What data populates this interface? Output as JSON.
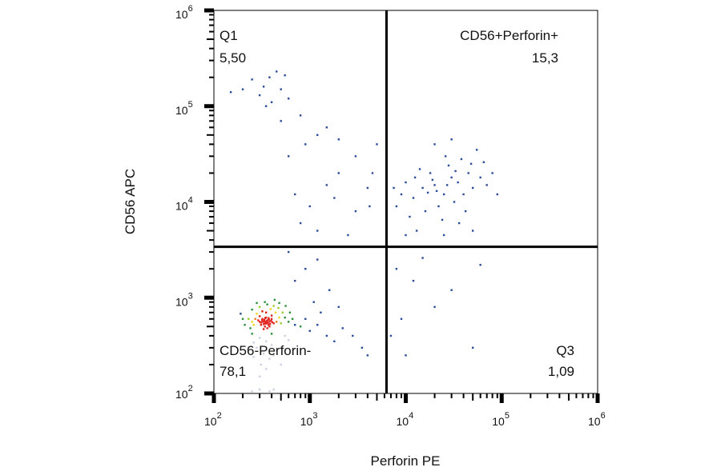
{
  "chart_data": {
    "type": "scatter",
    "xlabel": "Perforin PE",
    "ylabel": "CD56 APC",
    "x_scale": "log",
    "y_scale": "log",
    "xlim": [
      100,
      1000000
    ],
    "ylim": [
      100,
      1000000
    ],
    "x_ticks": [
      {
        "base": "10",
        "exp": "2"
      },
      {
        "base": "10",
        "exp": "3"
      },
      {
        "base": "10",
        "exp": "4"
      },
      {
        "base": "10",
        "exp": "5"
      },
      {
        "base": "10",
        "exp": "6"
      }
    ],
    "y_ticks": [
      {
        "base": "10",
        "exp": "2"
      },
      {
        "base": "10",
        "exp": "3"
      },
      {
        "base": "10",
        "exp": "4"
      },
      {
        "base": "10",
        "exp": "5"
      },
      {
        "base": "10",
        "exp": "6"
      }
    ],
    "gates": {
      "x": 6300,
      "y": 3400
    },
    "quadrants": [
      {
        "name": "Q1",
        "value": "5,50",
        "position": "top-left"
      },
      {
        "name": "CD56+Perforin+",
        "value": "15,3",
        "position": "top-right"
      },
      {
        "name": "CD56-Perforin-",
        "value": "78,1",
        "position": "bottom-left"
      },
      {
        "name": "Q3",
        "value": "1,09",
        "position": "bottom-right"
      }
    ],
    "density_colors": [
      "#2a4a9a",
      "#2d8f3c",
      "#9ccc2a",
      "#f2d21a",
      "#f07a14",
      "#e0201a"
    ],
    "low_color": "#c8cfe0",
    "points": [
      [
        300,
        560
      ],
      [
        320,
        600
      ],
      [
        350,
        540
      ],
      [
        370,
        520
      ],
      [
        340,
        500
      ],
      [
        360,
        580
      ],
      [
        330,
        530
      ],
      [
        380,
        560
      ],
      [
        400,
        600
      ],
      [
        310,
        520
      ],
      [
        290,
        580
      ],
      [
        350,
        620
      ],
      [
        420,
        540
      ],
      [
        380,
        500
      ],
      [
        360,
        480
      ],
      [
        330,
        470
      ],
      [
        400,
        650
      ],
      [
        450,
        560
      ],
      [
        300,
        640
      ],
      [
        270,
        600
      ],
      [
        250,
        560
      ],
      [
        440,
        700
      ],
      [
        480,
        620
      ],
      [
        500,
        540
      ],
      [
        350,
        700
      ],
      [
        320,
        720
      ],
      [
        280,
        680
      ],
      [
        260,
        520
      ],
      [
        230,
        600
      ],
      [
        390,
        760
      ],
      [
        420,
        820
      ],
      [
        360,
        850
      ],
      [
        300,
        800
      ],
      [
        470,
        780
      ],
      [
        520,
        700
      ],
      [
        550,
        620
      ],
      [
        600,
        560
      ],
      [
        240,
        480
      ],
      [
        210,
        520
      ],
      [
        200,
        600
      ],
      [
        560,
        820
      ],
      [
        620,
        700
      ],
      [
        660,
        600
      ],
      [
        340,
        900
      ],
      [
        430,
        950
      ],
      [
        480,
        880
      ],
      [
        280,
        880
      ],
      [
        250,
        750
      ],
      [
        190,
        680
      ],
      [
        700,
        520
      ],
      [
        340,
        560
      ],
      [
        360,
        550
      ],
      [
        355,
        570
      ],
      [
        345,
        535
      ],
      [
        365,
        545
      ],
      [
        375,
        590
      ],
      [
        335,
        585
      ],
      [
        325,
        560
      ],
      [
        385,
        530
      ],
      [
        395,
        575
      ],
      [
        310,
        550
      ],
      [
        405,
        555
      ],
      [
        372,
        612
      ],
      [
        342,
        612
      ],
      [
        318,
        580
      ],
      [
        300,
        380
      ],
      [
        350,
        350
      ],
      [
        280,
        300
      ],
      [
        400,
        320
      ],
      [
        330,
        260
      ],
      [
        260,
        340
      ],
      [
        450,
        280
      ],
      [
        380,
        230
      ],
      [
        310,
        200
      ],
      [
        500,
        300
      ],
      [
        420,
        250
      ],
      [
        260,
        240
      ],
      [
        350,
        180
      ],
      [
        300,
        150
      ],
      [
        230,
        300
      ],
      [
        500,
        200
      ],
      [
        400,
        420
      ],
      [
        250,
        420
      ],
      [
        550,
        400
      ],
      [
        600,
        360
      ],
      [
        300,
        110
      ],
      [
        380,
        105
      ],
      [
        250,
        105
      ],
      [
        420,
        110
      ],
      [
        800,
        500
      ],
      [
        1000,
        450
      ],
      [
        1200,
        520
      ],
      [
        1500,
        400
      ],
      [
        900,
        600
      ],
      [
        1800,
        350
      ],
      [
        1300,
        700
      ],
      [
        2200,
        480
      ],
      [
        2800,
        400
      ],
      [
        3500,
        300
      ],
      [
        1100,
        900
      ],
      [
        1600,
        1200
      ],
      [
        2000,
        800
      ],
      [
        4000,
        250
      ],
      [
        700,
        1500
      ],
      [
        900,
        2000
      ],
      [
        1200,
        2500
      ],
      [
        600,
        3000
      ],
      [
        20000,
        15000
      ],
      [
        25000,
        12000
      ],
      [
        30000,
        18000
      ],
      [
        15000,
        14000
      ],
      [
        18000,
        20000
      ],
      [
        35000,
        16000
      ],
      [
        40000,
        12000
      ],
      [
        22000,
        9000
      ],
      [
        12000,
        11000
      ],
      [
        28000,
        24000
      ],
      [
        45000,
        20000
      ],
      [
        50000,
        14000
      ],
      [
        16000,
        8000
      ],
      [
        10000,
        16000
      ],
      [
        32000,
        10000
      ],
      [
        60000,
        18000
      ],
      [
        26000,
        30000
      ],
      [
        38000,
        28000
      ],
      [
        14000,
        22000
      ],
      [
        9000,
        12000
      ],
      [
        20000,
        40000
      ],
      [
        30000,
        45000
      ],
      [
        55000,
        35000
      ],
      [
        70000,
        15000
      ],
      [
        80000,
        20000
      ],
      [
        8000,
        9000
      ],
      [
        7500,
        14000
      ],
      [
        11000,
        7000
      ],
      [
        42000,
        8000
      ],
      [
        24000,
        6500
      ],
      [
        19000,
        17000
      ],
      [
        21000,
        13000
      ],
      [
        27000,
        15000
      ],
      [
        33000,
        21000
      ],
      [
        17000,
        12500
      ],
      [
        48000,
        25000
      ],
      [
        12500,
        18000
      ],
      [
        65000,
        26000
      ],
      [
        90000,
        12000
      ],
      [
        36000,
        6000
      ],
      [
        13000,
        5000
      ],
      [
        50000,
        5000
      ],
      [
        25000,
        4500
      ],
      [
        10000,
        4500
      ],
      [
        700,
        12000
      ],
      [
        1000,
        9000
      ],
      [
        1500,
        15000
      ],
      [
        2000,
        20000
      ],
      [
        3000,
        8000
      ],
      [
        4000,
        14000
      ],
      [
        800,
        6000
      ],
      [
        1200,
        5000
      ],
      [
        2500,
        4500
      ],
      [
        1800,
        11000
      ],
      [
        600,
        30000
      ],
      [
        900,
        40000
      ],
      [
        1500,
        60000
      ],
      [
        2000,
        45000
      ],
      [
        3000,
        30000
      ],
      [
        4500,
        20000
      ],
      [
        500,
        70000
      ],
      [
        400,
        110000
      ],
      [
        300,
        130000
      ],
      [
        330,
        160000
      ],
      [
        250,
        190000
      ],
      [
        380,
        200000
      ],
      [
        450,
        230000
      ],
      [
        550,
        210000
      ],
      [
        500,
        150000
      ],
      [
        600,
        120000
      ],
      [
        800,
        80000
      ],
      [
        1200,
        50000
      ],
      [
        200,
        150000
      ],
      [
        150,
        140000
      ],
      [
        350,
        100000
      ],
      [
        5000,
        40000
      ],
      [
        4200,
        9000
      ],
      [
        8000,
        2000
      ],
      [
        12000,
        1500
      ],
      [
        20000,
        800
      ],
      [
        9000,
        600
      ],
      [
        30000,
        1200
      ],
      [
        50000,
        300
      ],
      [
        7000,
        400
      ],
      [
        15000,
        2600
      ],
      [
        60000,
        2200
      ],
      [
        10000,
        250
      ]
    ]
  }
}
